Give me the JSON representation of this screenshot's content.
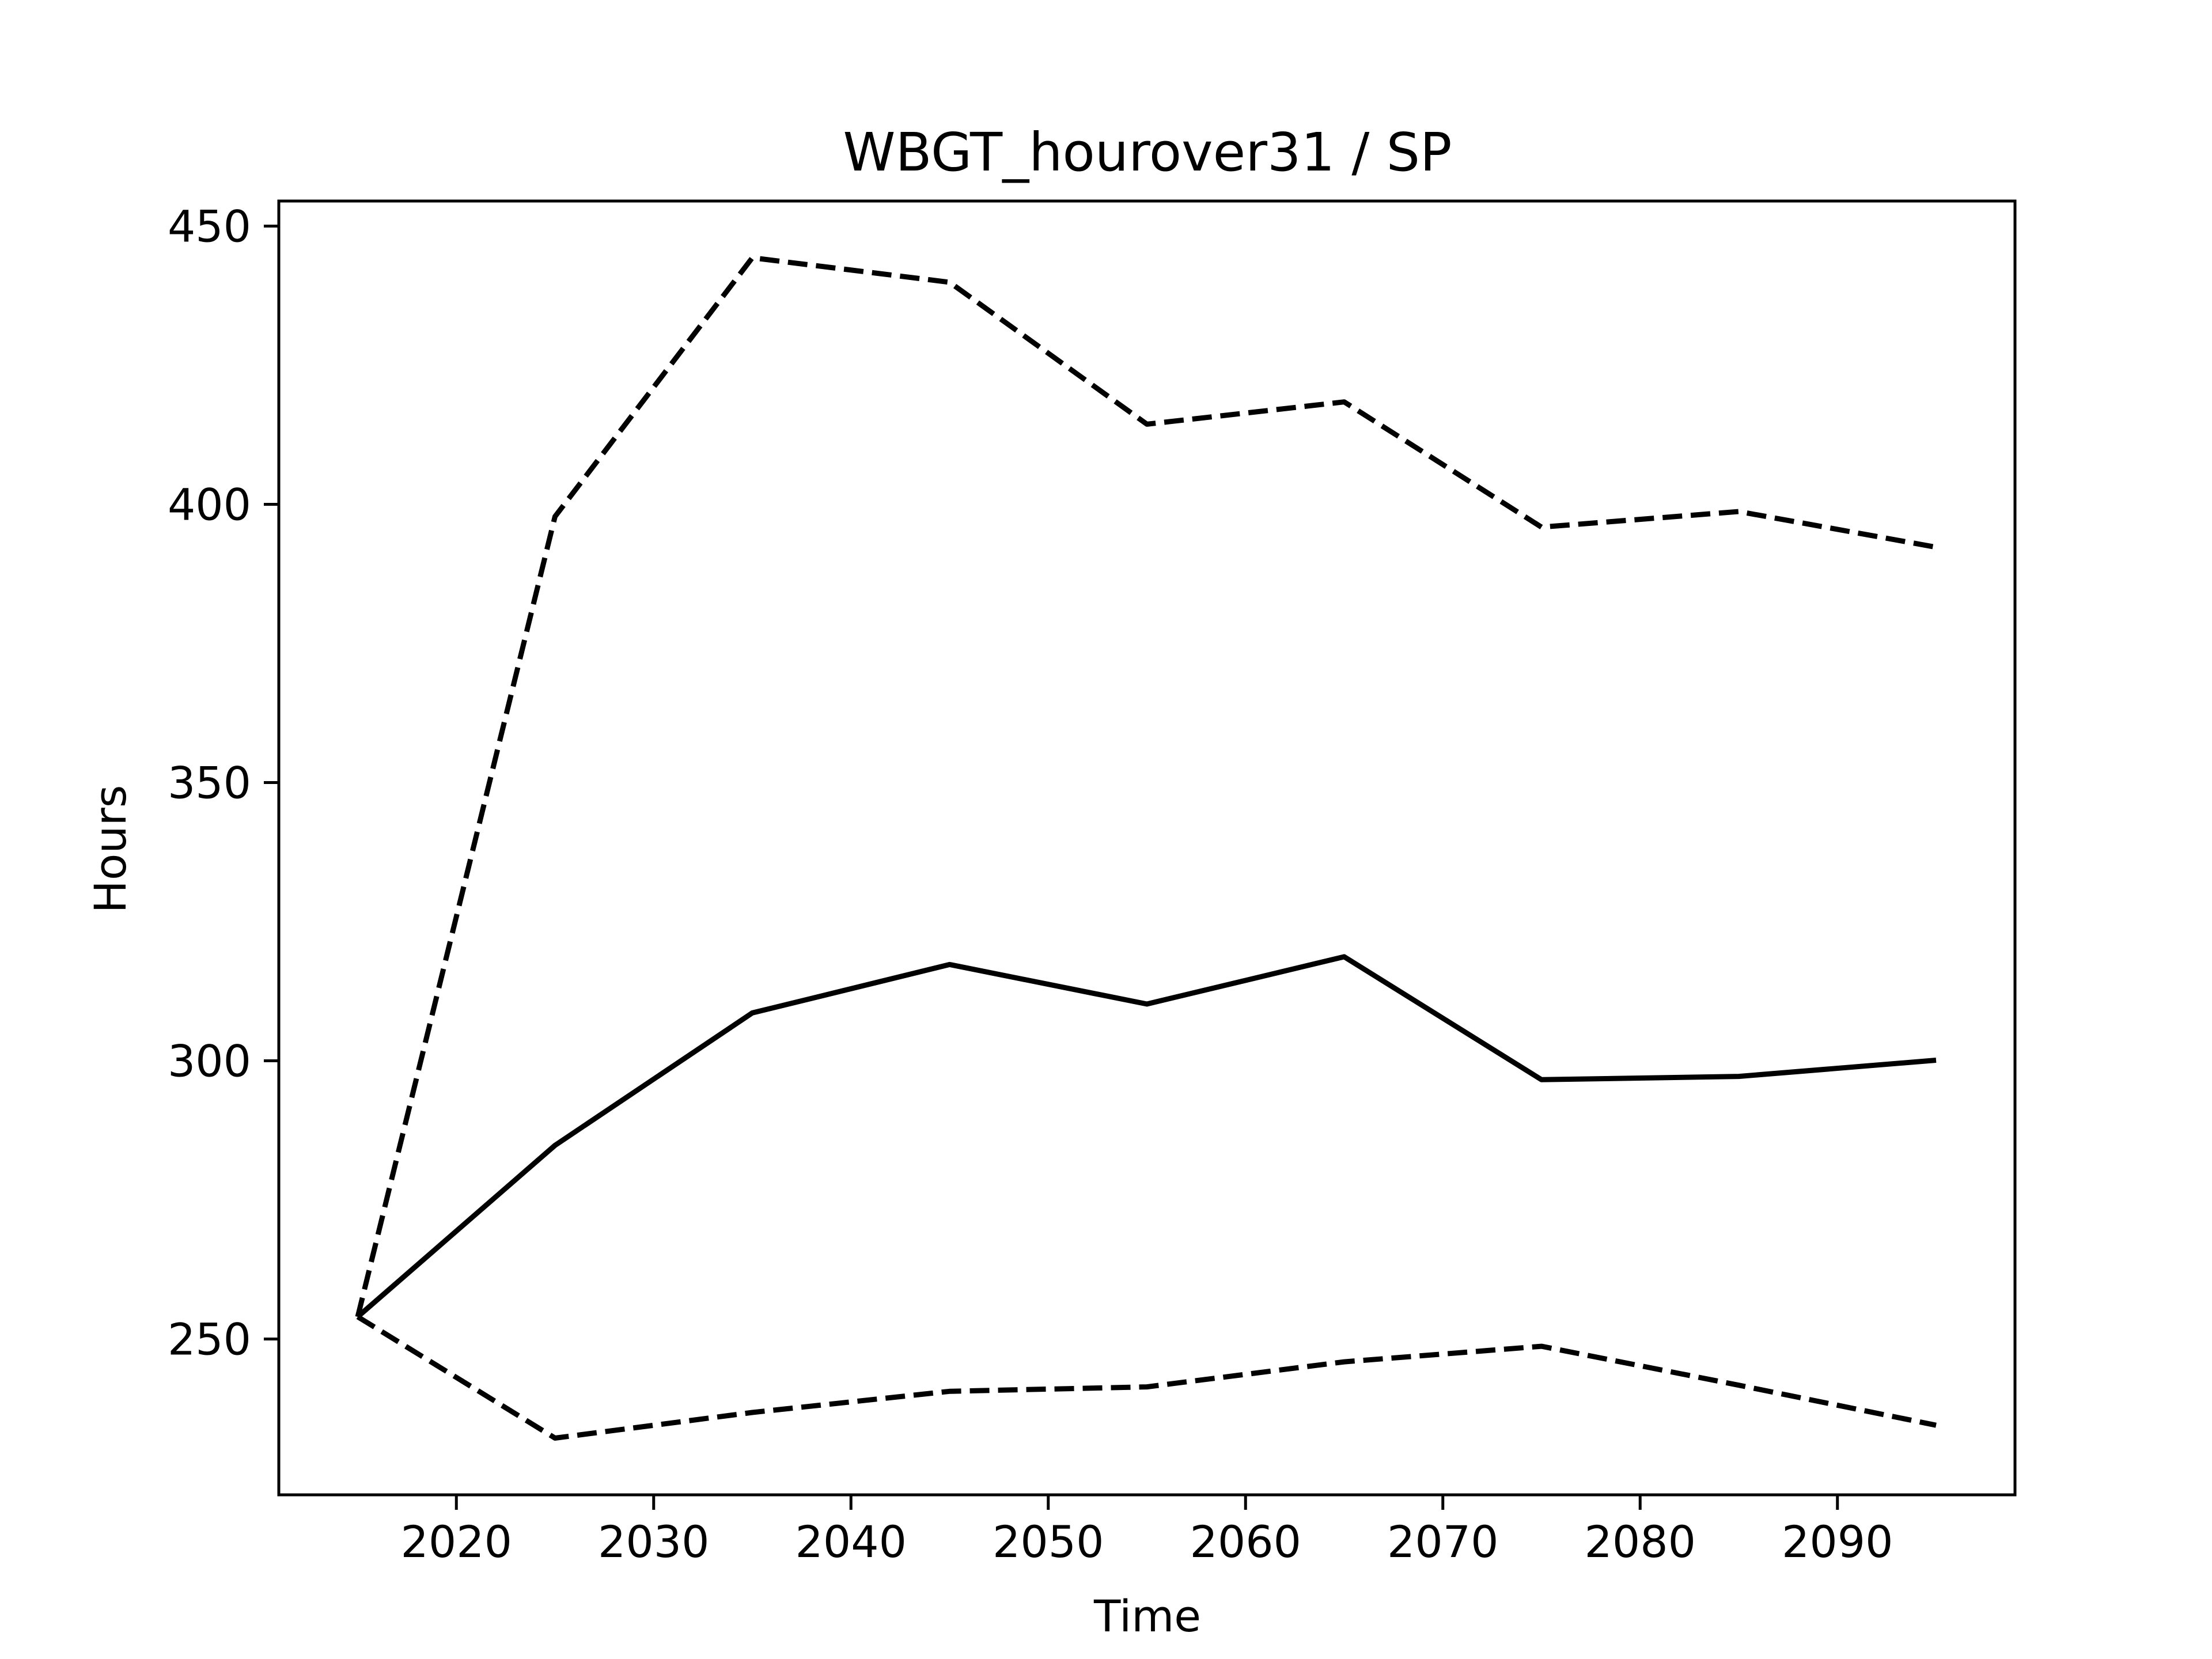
{
  "chart_data": {
    "type": "line",
    "title": "WBGT_hourover31 / SP",
    "xlabel": "Time",
    "ylabel": "Hours",
    "xlim": [
      2011,
      2099
    ],
    "ylim": [
      222,
      454.5
    ],
    "xticks": [
      2020,
      2030,
      2040,
      2050,
      2060,
      2070,
      2080,
      2090
    ],
    "yticks": [
      250,
      300,
      350,
      400,
      450
    ],
    "grid": false,
    "legend": "none",
    "x": [
      2015,
      2025,
      2035,
      2045,
      2055,
      2065,
      2075,
      2085,
      2095
    ],
    "series": [
      {
        "style": "solid",
        "color": "#000000",
        "values": [
          254,
          284.8,
          308.6,
          317.3,
          310.2,
          318.7,
          296.6,
          297.2,
          300.1
        ]
      },
      {
        "style": "dashed",
        "color": "#000000",
        "values": [
          254,
          397.8,
          444.3,
          439.9,
          414.4,
          418.4,
          395.9,
          398.7,
          392.3
        ]
      },
      {
        "style": "dashed",
        "color": "#000000",
        "values": [
          254,
          232.2,
          236.8,
          240.6,
          241.4,
          245.9,
          248.7,
          241.7,
          234.5
        ]
      }
    ]
  }
}
